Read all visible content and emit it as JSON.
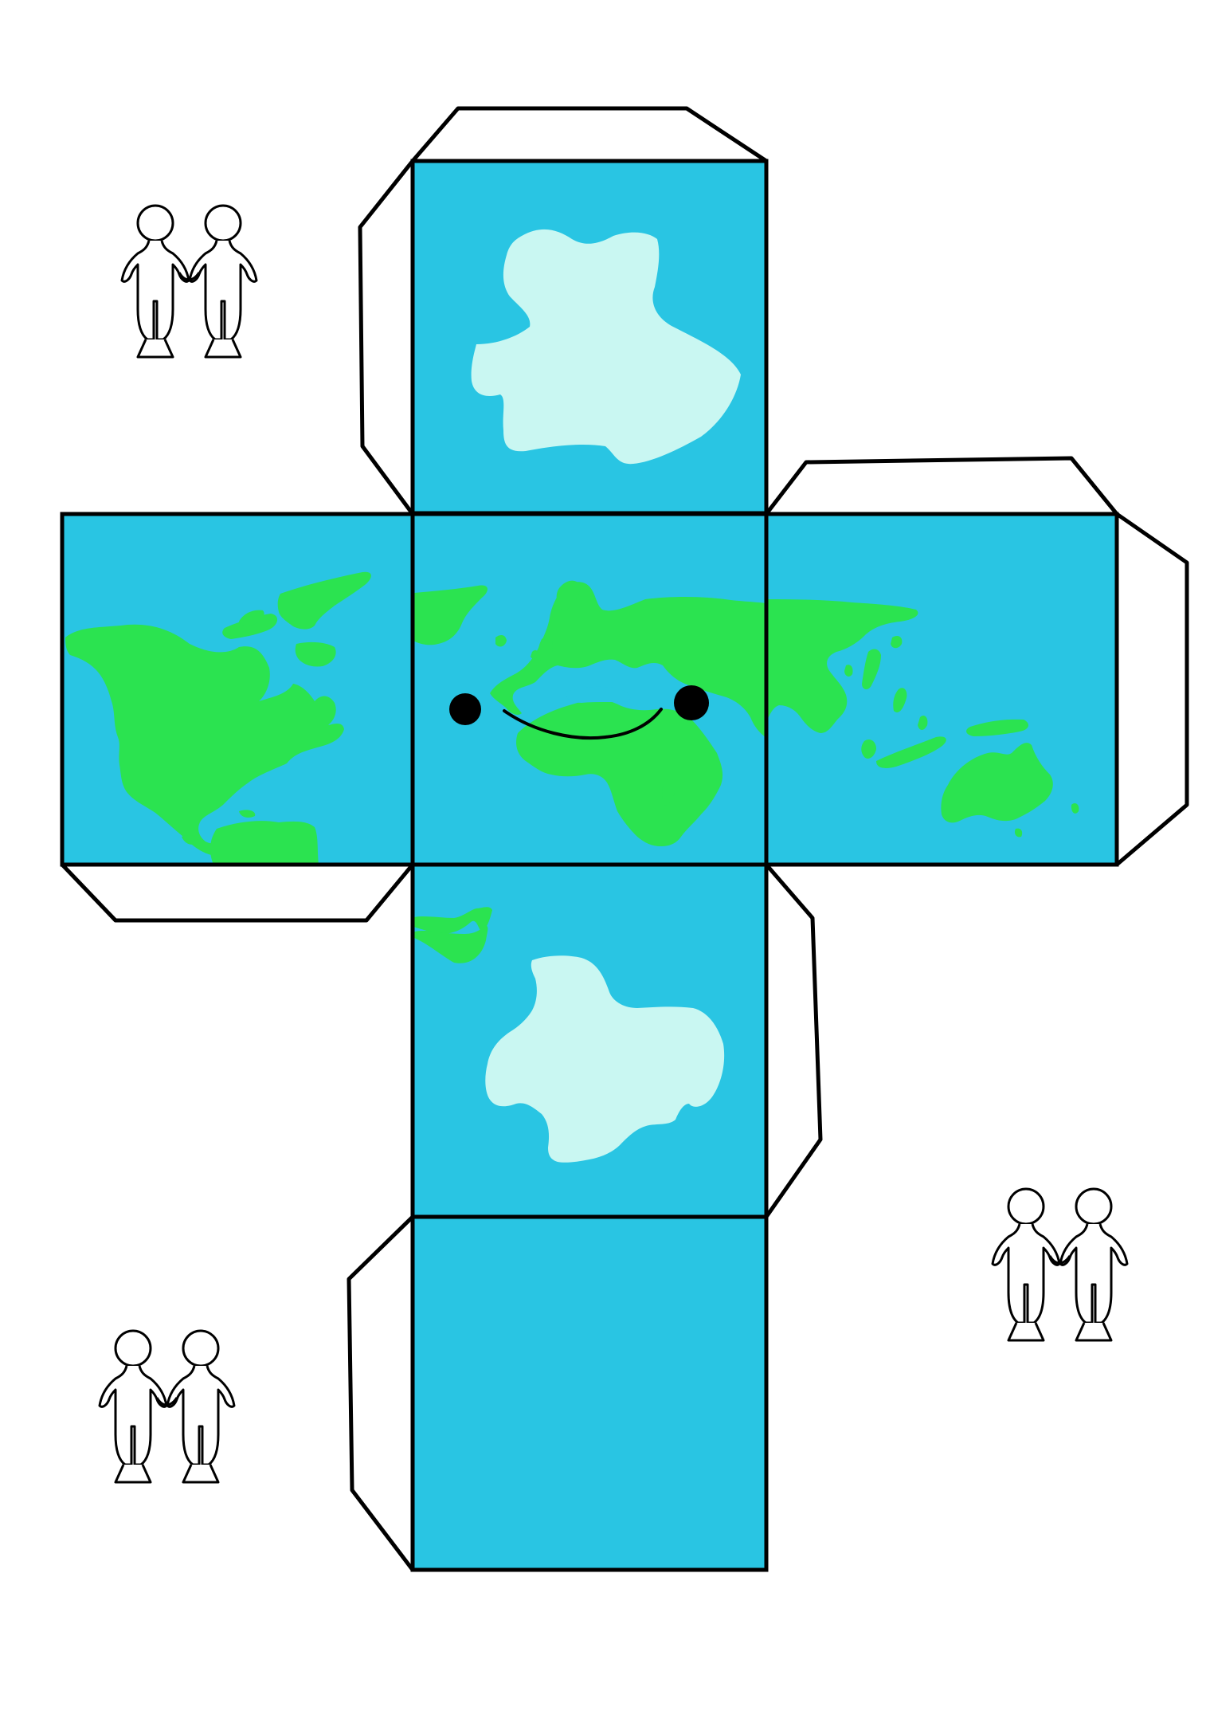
{
  "colors": {
    "background": "#ffffff",
    "ocean": "#29c5e3",
    "land": "#2be350",
    "ice": "#c9f7f2",
    "outline": "#000000",
    "tab_fill": "#ffffff",
    "face_eye": "#000000"
  },
  "net": {
    "faces": [
      "top-pole-face",
      "left-face",
      "center-face",
      "right-face",
      "bottom-pole-face",
      "base-face"
    ],
    "glue_tabs": 7
  },
  "decorations": {
    "people_pair_icons": 3
  }
}
